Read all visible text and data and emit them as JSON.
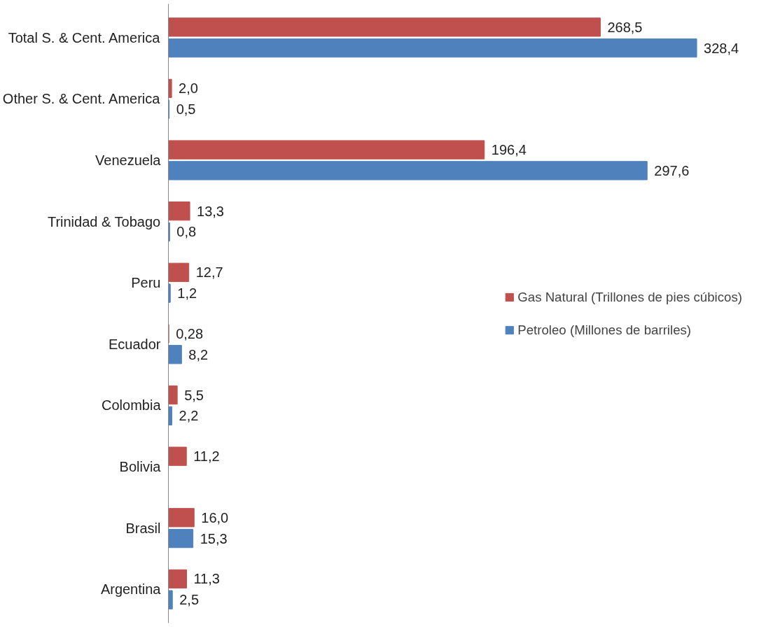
{
  "chart_data": {
    "type": "bar",
    "orientation": "horizontal",
    "categories": [
      "Total S. & Cent. America",
      "Other S. & Cent. America",
      "Venezuela",
      "Trinidad & Tobago",
      "Peru",
      "Ecuador",
      "Colombia",
      "Bolivia",
      "Brasil",
      "Argentina"
    ],
    "series": [
      {
        "name": "Gas Natural (Trillones de pies cúbicos)",
        "color": "#c0504d",
        "values": [
          268.5,
          2.0,
          196.4,
          13.3,
          12.7,
          0.28,
          5.5,
          11.2,
          16.0,
          11.3
        ],
        "value_labels": [
          "268,5",
          "2,0",
          "196,4",
          "13,3",
          "12,7",
          "0,28",
          "5,5",
          "11,2",
          "16,0",
          "11,3"
        ]
      },
      {
        "name": "Petroleo (Millones de barriles)",
        "color": "#4f81bd",
        "values": [
          328.4,
          0.5,
          297.6,
          0.8,
          1.2,
          8.2,
          2.2,
          null,
          15.3,
          2.5
        ],
        "value_labels": [
          "328,4",
          "0,5",
          "297,6",
          "0,8",
          "1,2",
          "8,2",
          "2,2",
          null,
          "15,3",
          "2,5"
        ]
      }
    ],
    "legend": "right"
  }
}
